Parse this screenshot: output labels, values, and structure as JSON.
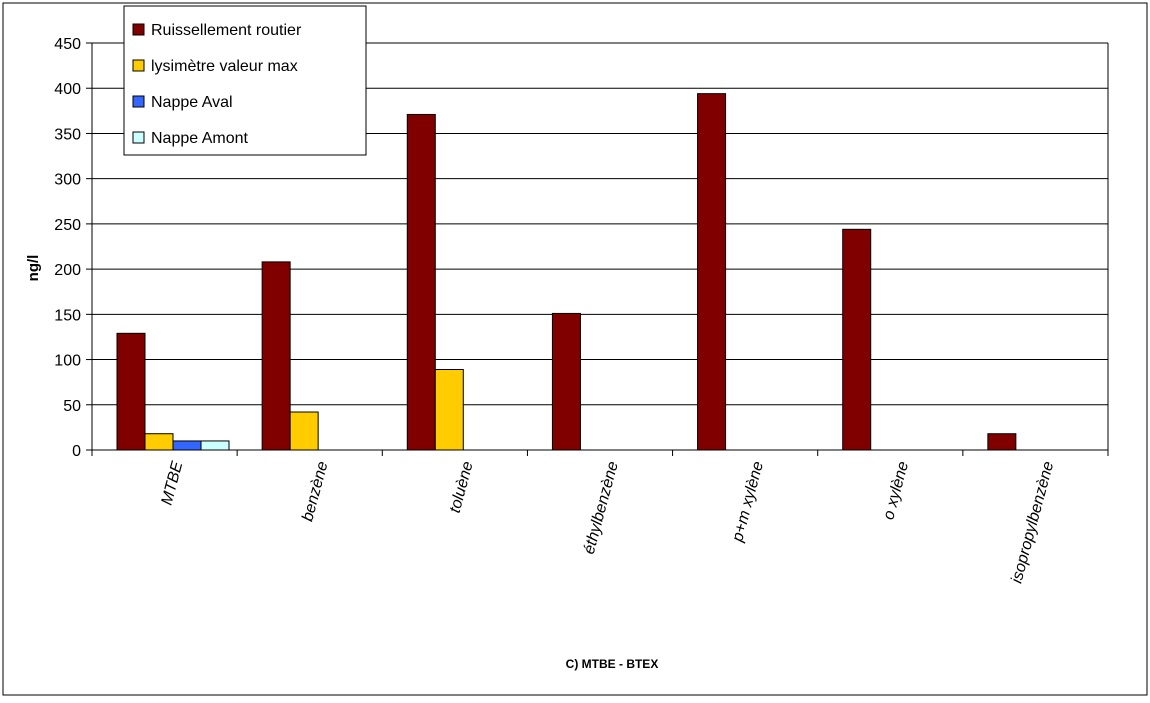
{
  "chart_data": {
    "type": "bar",
    "title": "",
    "xlabel": "C) MTBE - BTEX",
    "ylabel": "ng/l",
    "ylim": [
      0,
      450
    ],
    "yticks": [
      0,
      50,
      100,
      150,
      200,
      250,
      300,
      350,
      400,
      450
    ],
    "grid": true,
    "legend_position": "top-left",
    "categories": [
      "MTBE",
      "benzène",
      "toluène",
      "éthylbenzène",
      "p+m xylène",
      "o xylène",
      "isopropylbenzène"
    ],
    "series": [
      {
        "name": "Ruissellement routier",
        "color": "#800000",
        "values": [
          129,
          208,
          371,
          151,
          394,
          244,
          18
        ]
      },
      {
        "name": "lysimètre valeur max",
        "color": "#FFCC00",
        "values": [
          18,
          42,
          89,
          0,
          0,
          0,
          0
        ]
      },
      {
        "name": "Nappe Aval",
        "color": "#3366FF",
        "values": [
          10,
          0,
          0,
          0,
          0,
          0,
          0
        ]
      },
      {
        "name": "Nappe Amont",
        "color": "#CCFFFF",
        "values": [
          10,
          0,
          0,
          0,
          0,
          0,
          0
        ]
      }
    ]
  }
}
